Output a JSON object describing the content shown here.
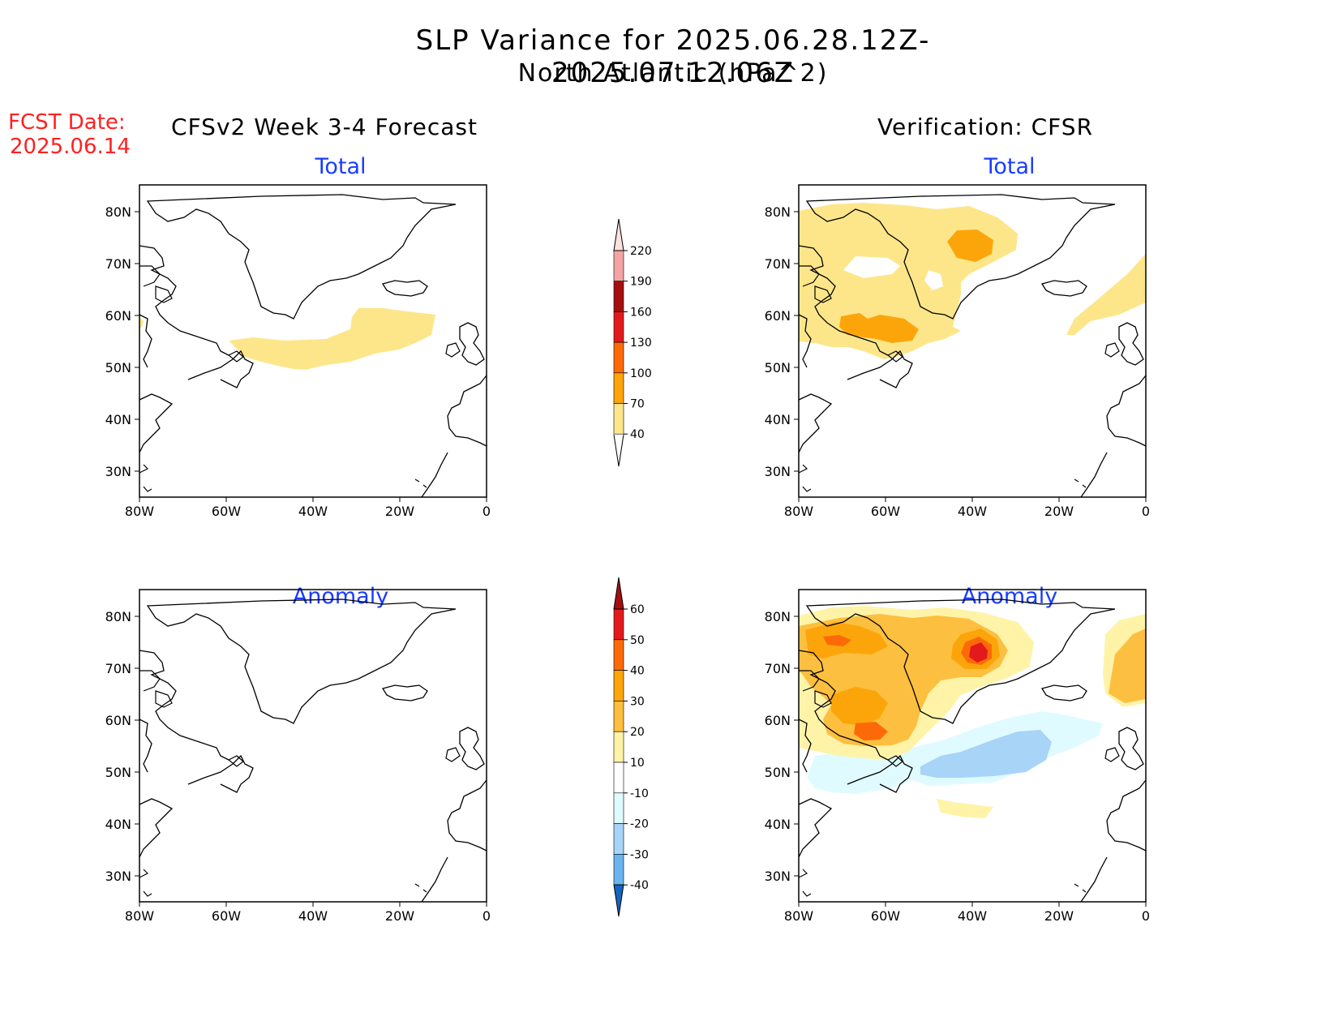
{
  "title": {
    "line1": "SLP Variance for 2025.06.28.12Z-2025.07.12.06Z",
    "line2": "North Atlantic (hPa^2)"
  },
  "fcst_date": {
    "label": "FCST Date:",
    "value": "2025.06.14"
  },
  "columns": {
    "forecast": "CFSv2 Week 3-4 Forecast",
    "verification": "Verification: CFSR"
  },
  "panels": {
    "total_label": "Total",
    "anomaly_label": "Anomaly"
  },
  "axes": {
    "lat_labels": [
      "80N",
      "70N",
      "60N",
      "50N",
      "40N",
      "30N"
    ],
    "lon_labels": [
      "80W",
      "60W",
      "40W",
      "20W",
      "0"
    ]
  },
  "colorbars": {
    "total": {
      "levels": [
        "40",
        "70",
        "100",
        "130",
        "160",
        "190",
        "220"
      ],
      "colors": [
        "#fde68a",
        "#fca50a",
        "#fc6a08",
        "#e31a1c",
        "#a50f0f",
        "#f4a4a4",
        "#fde0e0"
      ]
    },
    "anomaly": {
      "levels": [
        "60",
        "50",
        "40",
        "30",
        "20",
        "10",
        "-10",
        "-20",
        "-30",
        "-40"
      ],
      "colors": [
        "#a50f0f",
        "#e31a1c",
        "#fc6a08",
        "#fca50a",
        "#fdbf3f",
        "#fff3a8",
        "#ffffff",
        "#e0fbff",
        "#a8d4f8",
        "#6cb4f0",
        "#2a86e8",
        "#1565c0"
      ]
    }
  },
  "colors": {
    "accent_red": "#ff2020",
    "label_blue": "#1a3cff"
  }
}
